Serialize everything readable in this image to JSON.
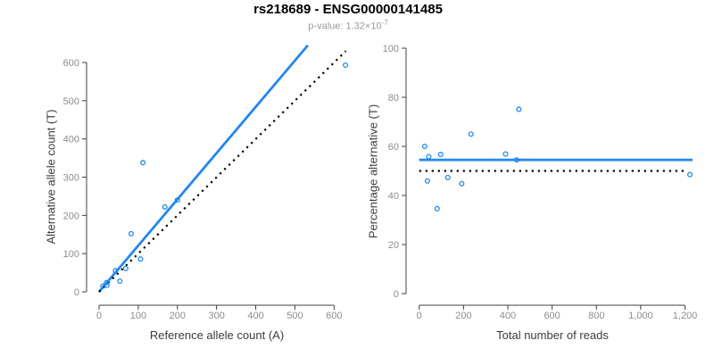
{
  "header": {
    "title": "rs218689 - ENSG00000141485",
    "pvalue_base": "p-value: 1.32×10",
    "pvalue_exponent": "-7"
  },
  "colors": {
    "accent_blue": "#2287EF",
    "dotted_black": "#000000",
    "tick_gray": "#8c8c8c",
    "axis_line": "#404040"
  },
  "chart_data": [
    {
      "type": "scatter",
      "panel": "left",
      "xlabel": "Reference allele count (A)",
      "ylabel": "Alternative allele count (T)",
      "xticks": [
        0,
        100,
        200,
        300,
        400,
        500,
        600
      ],
      "xtick_labels": [
        "0",
        "100",
        "200",
        "300",
        "400",
        "500",
        "600"
      ],
      "yticks": [
        0,
        100,
        200,
        300,
        400,
        500,
        600
      ],
      "ytick_labels": [
        "0",
        "100",
        "200",
        "300",
        "400",
        "500",
        "600"
      ],
      "xlim": [
        0,
        650
      ],
      "ylim": [
        0,
        660
      ],
      "grid": false,
      "legend": null,
      "points": [
        [
          10,
          15
        ],
        [
          19,
          24
        ],
        [
          20,
          17
        ],
        [
          53,
          28
        ],
        [
          42,
          55
        ],
        [
          68,
          61
        ],
        [
          106,
          86
        ],
        [
          82,
          152
        ],
        [
          168,
          222
        ],
        [
          112,
          338
        ],
        [
          200,
          240
        ],
        [
          629,
          593
        ]
      ],
      "lines": [
        {
          "name": "fit-line",
          "slope": 1.21,
          "intercept": 0,
          "x_range": [
            0,
            533
          ],
          "style": "solid",
          "color_key": "accent_blue",
          "width": 2.8
        },
        {
          "name": "identity-line",
          "slope": 1,
          "intercept": 0,
          "x_range": [
            0,
            630
          ],
          "style": "dotted",
          "color_key": "dotted_black",
          "width": 2.2
        }
      ]
    },
    {
      "type": "scatter",
      "panel": "right",
      "xlabel": "Total number of reads",
      "ylabel": "Percentage alternative (T)",
      "xticks": [
        0,
        200,
        400,
        600,
        800,
        1000,
        1200
      ],
      "xtick_labels": [
        "0",
        "200",
        "400",
        "600",
        "800",
        "1,000",
        "1,200"
      ],
      "yticks": [
        0,
        20,
        40,
        60,
        80,
        100
      ],
      "ytick_labels": [
        "0",
        "20",
        "40",
        "60",
        "80",
        "100"
      ],
      "xlim": [
        0,
        1240
      ],
      "ylim": [
        0,
        100
      ],
      "grid": false,
      "legend": null,
      "points": [
        [
          25,
          60.0
        ],
        [
          43,
          55.8
        ],
        [
          37,
          45.9
        ],
        [
          81,
          34.6
        ],
        [
          97,
          56.7
        ],
        [
          129,
          47.3
        ],
        [
          192,
          44.8
        ],
        [
          234,
          65.0
        ],
        [
          390,
          56.9
        ],
        [
          450,
          75.1
        ],
        [
          440,
          54.5
        ],
        [
          1222,
          48.5
        ]
      ],
      "lines": [
        {
          "name": "mean-percentage-line",
          "y": 54.5,
          "x_range": [
            0,
            1234
          ],
          "style": "solid",
          "color_key": "accent_blue",
          "width": 2.8
        },
        {
          "name": "fifty-percent-line",
          "y": 50,
          "x_range": [
            0,
            1210
          ],
          "style": "dotted",
          "color_key": "dotted_black",
          "width": 2.2
        }
      ]
    }
  ]
}
